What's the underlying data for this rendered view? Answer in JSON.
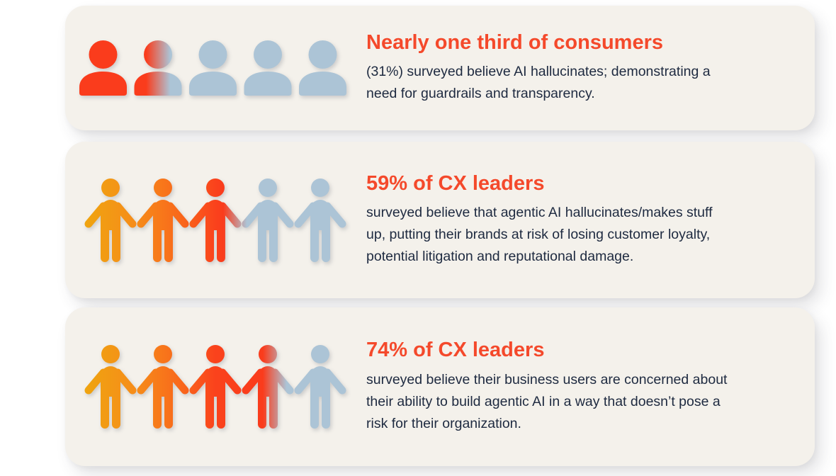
{
  "style": {
    "page_bg": "#ffffff",
    "card_bg": "#f4f1eb",
    "heading_color": "#f4492b",
    "body_color": "#1e2a40",
    "icon_gray": "#acc4d6",
    "icon_red": "#fa3c1c",
    "person_gradient": [
      "#efa50f",
      "#f68c1a",
      "#f9651b",
      "#fa421c"
    ]
  },
  "cards": [
    {
      "id": "consumers-ai-hallucination",
      "icon_type": "bust",
      "percent": 31,
      "heading": "Nearly one third of consumers",
      "body_lines": [
        "(31%) surveyed believe AI hallucinates; demonstrating a",
        "need for guardrails and transparency."
      ]
    },
    {
      "id": "cx-leaders-brand-risk",
      "icon_type": "person",
      "percent": 59,
      "heading": "59% of CX leaders",
      "body_lines": [
        "surveyed believe that agentic AI hallucinates/makes stuff",
        "up, putting their brands at risk of losing customer loyalty,",
        "potential litigation and reputational damage."
      ]
    },
    {
      "id": "cx-leaders-business-users",
      "icon_type": "person",
      "percent": 74,
      "heading": "74% of CX leaders",
      "body_lines": [
        "surveyed believe their business users are concerned about",
        "their ability to build agentic AI in a way that doesn’t pose a",
        "risk for their organization."
      ]
    }
  ],
  "chart_data": {
    "type": "pictogram",
    "icons_per_row": 5,
    "unit": "percent",
    "items": [
      {
        "label": "Nearly one third of consumers",
        "value": 31,
        "description": "(31%) surveyed believe AI hallucinates; demonstrating a need for guardrails and transparency."
      },
      {
        "label": "59% of CX leaders",
        "value": 59,
        "description": "surveyed believe that agentic AI hallucinates/makes stuff up, putting their brands at risk of losing customer loyalty, potential litigation and reputational damage."
      },
      {
        "label": "74% of CX leaders",
        "value": 74,
        "description": "surveyed believe their business users are concerned about their ability to build agentic AI in a way that doesn’t pose a risk for their organization."
      }
    ]
  }
}
